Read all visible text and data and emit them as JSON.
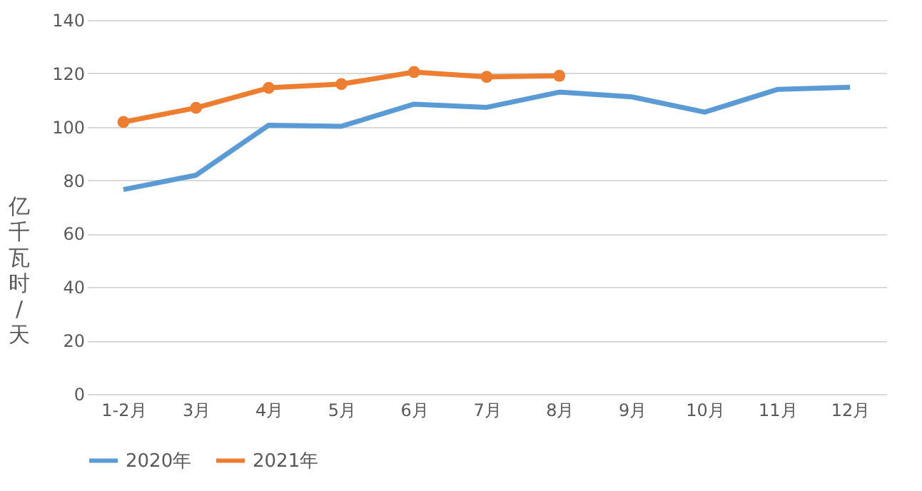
{
  "chart_data": {
    "type": "line",
    "ylabel": "亿千瓦时/天",
    "categories": [
      "1-2月",
      "3月",
      "4月",
      "5月",
      "6月",
      "7月",
      "8月",
      "9月",
      "10月",
      "11月",
      "12月"
    ],
    "series": [
      {
        "name": "2020年",
        "color": "#5b9bd5",
        "marker": "none",
        "values": [
          76.5,
          81.9,
          100.6,
          100.2,
          108.5,
          107.3,
          113,
          111.2,
          105.5,
          114,
          114.8
        ]
      },
      {
        "name": "2021年",
        "color": "#ed7d31",
        "marker": "circle",
        "values": [
          101.8,
          107.1,
          114.6,
          116,
          120.5,
          118.7,
          119.1,
          null,
          null,
          null,
          null
        ]
      }
    ],
    "ylim": [
      0,
      140
    ],
    "yticks": [
      0,
      20,
      40,
      60,
      80,
      100,
      120,
      140
    ],
    "grid": "y",
    "legend": "bottom",
    "line_style": "solid"
  }
}
